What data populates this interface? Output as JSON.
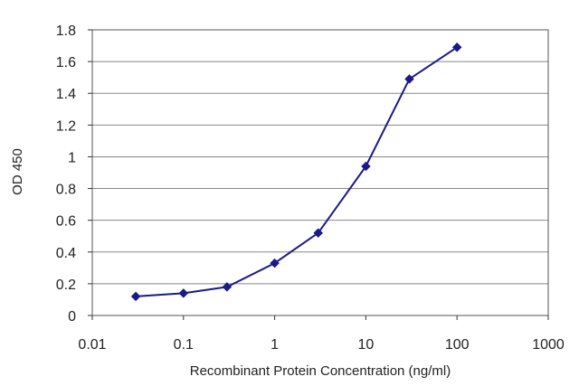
{
  "chart_data": {
    "type": "line",
    "title": "",
    "xlabel": "Recombinant Protein Concentration (ng/ml)",
    "ylabel": "OD 450",
    "x_scale": "log",
    "xlim": [
      0.01,
      1000
    ],
    "ylim": [
      0,
      1.8
    ],
    "x_ticks": [
      0.01,
      0.1,
      1,
      10,
      100,
      1000
    ],
    "x_tick_labels": [
      "0.01",
      "0.1",
      "1",
      "10",
      "100",
      "1000"
    ],
    "y_ticks": [
      0,
      0.2,
      0.4,
      0.6,
      0.8,
      1,
      1.2,
      1.4,
      1.6,
      1.8
    ],
    "y_tick_labels": [
      "0",
      "0.2",
      "0.4",
      "0.6",
      "0.8",
      "1",
      "1.2",
      "1.4",
      "1.6",
      "1.8"
    ],
    "grid": {
      "horizontal": true,
      "vertical": false
    },
    "legend": "none",
    "series": [
      {
        "x": [
          0.03,
          0.1,
          0.3,
          1,
          3,
          10,
          30,
          100
        ],
        "y": [
          0.12,
          0.14,
          0.18,
          0.33,
          0.52,
          0.94,
          1.49,
          1.69
        ],
        "color": "#1a1a8c",
        "marker": "diamond"
      }
    ],
    "colors": {
      "plot_border": "#555555",
      "grid": "#888888",
      "axis": "#333333"
    }
  }
}
